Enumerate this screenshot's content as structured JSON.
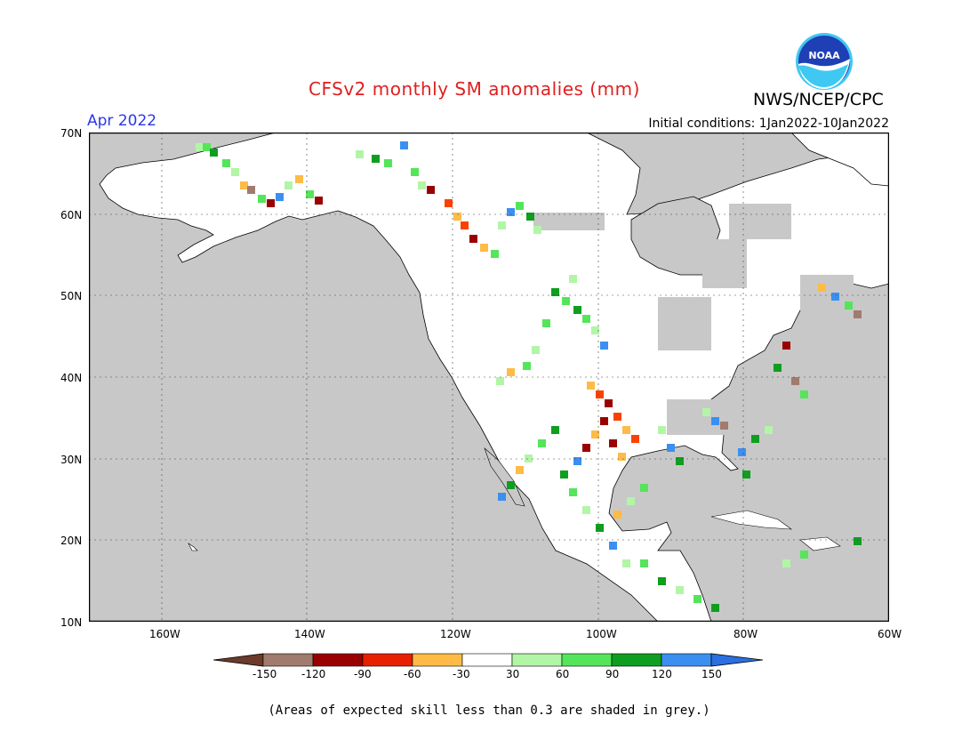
{
  "header": {
    "title": "CFSv2 monthly SM anomalies (mm)",
    "agency": "NWS/NCEP/CPC",
    "valid_month": "Apr 2022",
    "initial_conditions": "Initial conditions: 1Jan2022-10Jan2022",
    "logo_text": "NOAA"
  },
  "axes": {
    "lat_labels": [
      "70N",
      "60N",
      "50N",
      "40N",
      "30N",
      "20N",
      "10N"
    ],
    "lon_labels": [
      "160W",
      "140W",
      "120W",
      "100W",
      "80W",
      "60W"
    ]
  },
  "colorbar": {
    "tick_labels": [
      "-150",
      "-120",
      "-90",
      "-60",
      "-30",
      "30",
      "60",
      "90",
      "120",
      "150"
    ],
    "colors": [
      "#6b3a2a",
      "#a07b6e",
      "#990000",
      "#e62000",
      "#fa4200",
      "#ffbb46",
      "#ffffff",
      "#b2f5a6",
      "#54e55a",
      "#0f9e1f",
      "#3b8ff0",
      "#2b6fe0"
    ]
  },
  "footnote": "(Areas of expected skill less than 0.3 are shaded in grey.)",
  "map_colors": {
    "ocean": "#c8c8c8",
    "land": "#ffffff",
    "grey_skill": "#c8c8c8"
  }
}
